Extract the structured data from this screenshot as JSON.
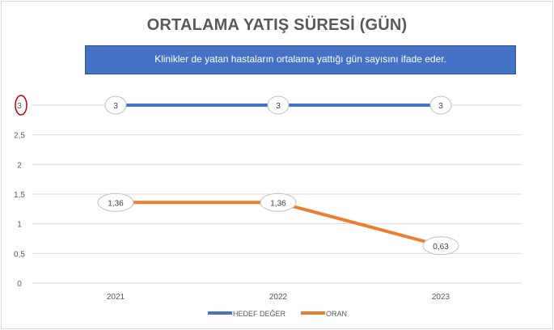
{
  "chart_data": {
    "type": "line",
    "title": "ORTALAMA YATIŞ SÜRESİ (GÜN)",
    "subtitle": "Klinikler de yatan hastaların ortalama yattığı gün sayısını ifade eder.",
    "categories": [
      "2021",
      "2022",
      "2023"
    ],
    "ylim": [
      0,
      3
    ],
    "yticks": [
      "0",
      "0,5",
      "1",
      "1,5",
      "2",
      "2,5",
      "3"
    ],
    "yticks_values": [
      0,
      0.5,
      1,
      1.5,
      2,
      2.5,
      3
    ],
    "grid": true,
    "legend_position": "bottom",
    "series": [
      {
        "name": "HEDEF DEĞER",
        "values": [
          3,
          3,
          3
        ],
        "labels": [
          "3",
          "3",
          "3"
        ],
        "color": "#4472c4"
      },
      {
        "name": "ORAN",
        "values": [
          1.36,
          1.36,
          0.63
        ],
        "labels": [
          "1,36",
          "1,36",
          "0,63"
        ],
        "color": "#ed7d31"
      }
    ],
    "highlight_color": "#c00000"
  }
}
